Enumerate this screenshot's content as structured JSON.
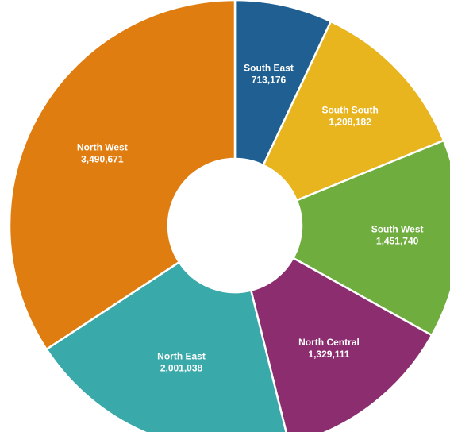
{
  "chart_data": {
    "type": "pie",
    "donut": true,
    "title": "",
    "slices": [
      {
        "label": "South East",
        "value_text": "713,176",
        "value": 713176,
        "color": "#1f5f91"
      },
      {
        "label": "South South",
        "value_text": "1,208,182",
        "value": 1208182,
        "color": "#e8b51f"
      },
      {
        "label": "South West",
        "value_text": "1,451,740",
        "value": 1451740,
        "color": "#6fad3f"
      },
      {
        "label": "North Central",
        "value_text": "1,329,111",
        "value": 1329111,
        "color": "#8b2d6f"
      },
      {
        "label": "North East",
        "value_text": "2,001,038",
        "value": 2001038,
        "color": "#3aa9aa"
      },
      {
        "label": "North West",
        "value_text": "3,490,671",
        "value": 3490671,
        "color": "#e07d10"
      }
    ]
  }
}
